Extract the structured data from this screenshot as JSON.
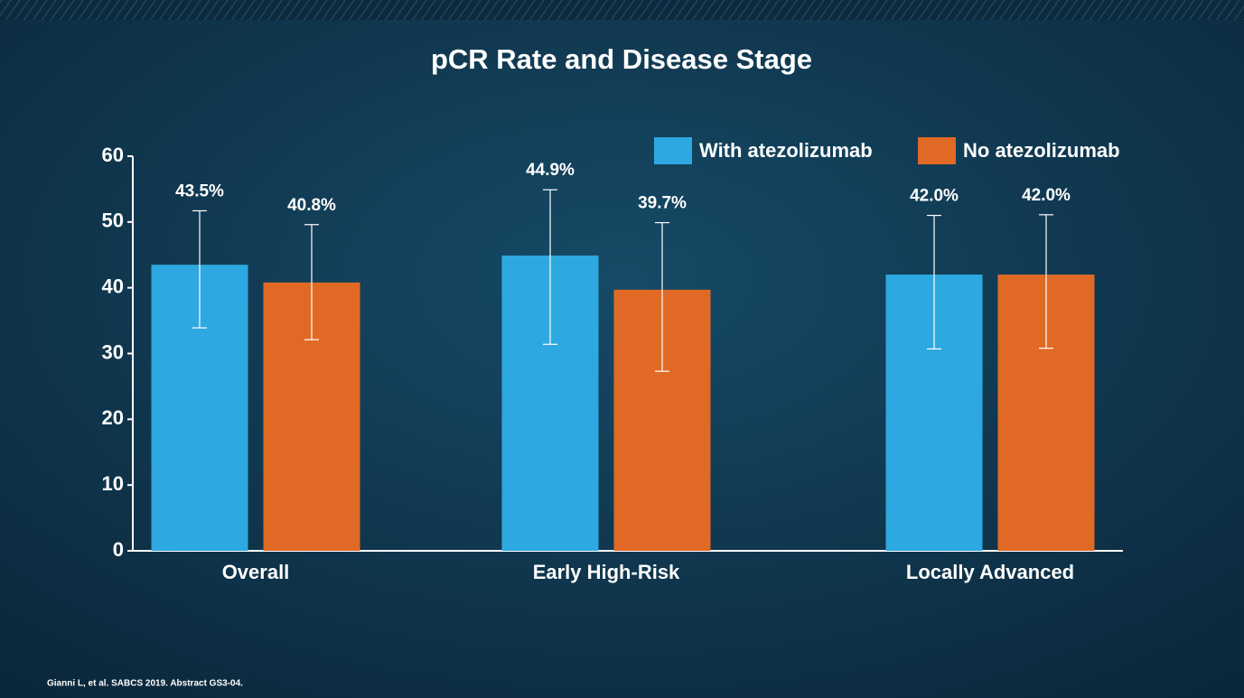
{
  "chart_data": {
    "type": "bar",
    "title": "pCR Rate and Disease Stage",
    "categories": [
      "Overall",
      "Early High-Risk",
      "Locally Advanced"
    ],
    "series": [
      {
        "name": "With atezolizumab",
        "color": "#2ea8e0",
        "values": [
          43.5,
          44.9,
          42.0
        ],
        "value_labels": [
          "43.5%",
          "44.9%",
          "42.0%"
        ],
        "ci_low": [
          33.9,
          31.4,
          30.7
        ],
        "ci_high": [
          51.7,
          54.9,
          51.0
        ]
      },
      {
        "name": "No atezolizumab",
        "color": "#e06a25",
        "values": [
          40.8,
          39.7,
          42.0
        ],
        "value_labels": [
          "40.8%",
          "39.7%",
          "42.0%"
        ],
        "ci_low": [
          32.1,
          27.3,
          30.8
        ],
        "ci_high": [
          49.6,
          49.9,
          51.1
        ]
      }
    ],
    "ylim": [
      0,
      60
    ],
    "yticks": [
      0,
      10,
      20,
      30,
      40,
      50,
      60
    ],
    "legend": "top-right",
    "footnote": "Gianni L, et al. SABCS 2019. Abstract GS3-04."
  }
}
